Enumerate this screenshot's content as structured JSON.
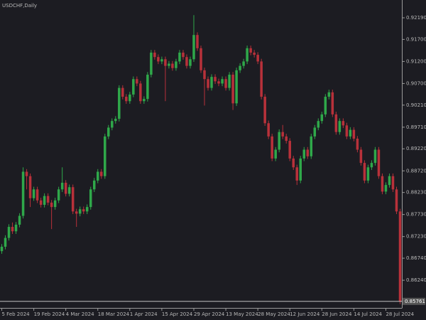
{
  "chart_data": {
    "type": "candlestick",
    "title": "USDCHF,Daily",
    "colors": {
      "up": "#2fa84a",
      "down": "#b8313a",
      "background": "#1c1c22",
      "axis": "#9a9a9a",
      "price_line": "#d8d8d8"
    },
    "ylim": [
      0.85613,
      0.92593
    ],
    "yticks": [
      {
        "value": 0.9219,
        "label": "0.92190"
      },
      {
        "value": 0.917,
        "label": "0.91700"
      },
      {
        "value": 0.912,
        "label": "0.91200"
      },
      {
        "value": 0.907,
        "label": "0.90700"
      },
      {
        "value": 0.9021,
        "label": "0.90210"
      },
      {
        "value": 0.8971,
        "label": "0.89710"
      },
      {
        "value": 0.8922,
        "label": "0.89220"
      },
      {
        "value": 0.8872,
        "label": "0.88720"
      },
      {
        "value": 0.8823,
        "label": "0.88230"
      },
      {
        "value": 0.8773,
        "label": "0.87730"
      },
      {
        "value": 0.8723,
        "label": "0.87230"
      },
      {
        "value": 0.8674,
        "label": "0.86740"
      },
      {
        "value": 0.8624,
        "label": "0.86240"
      }
    ],
    "price_line": {
      "value": 0.85761,
      "label": "0.85761"
    },
    "categories": [
      "5 Feb 2024",
      null,
      null,
      null,
      null,
      null,
      null,
      null,
      null,
      "19 Feb 2024",
      null,
      null,
      null,
      null,
      null,
      null,
      null,
      null,
      "4 Mar 2024",
      null,
      null,
      null,
      null,
      null,
      null,
      null,
      null,
      "18 Mar 2024",
      null,
      null,
      null,
      null,
      null,
      null,
      null,
      null,
      "1 Apr 2024",
      null,
      null,
      null,
      null,
      null,
      null,
      null,
      null,
      "15 Apr 2024",
      null,
      null,
      null,
      null,
      null,
      null,
      null,
      null,
      "29 Apr 2024",
      null,
      null,
      null,
      null,
      null,
      null,
      null,
      null,
      "13 May 2024",
      null,
      null,
      null,
      null,
      null,
      null,
      null,
      null,
      "28 May 2024",
      null,
      null,
      null,
      null,
      null,
      null,
      null,
      null,
      "12 Jun 2024",
      null,
      null,
      null,
      null,
      null,
      null,
      null,
      null,
      "28 Jun 2024",
      null,
      null,
      null,
      null,
      null,
      null,
      null,
      null,
      "14 Jul 2024",
      null,
      null,
      null,
      null,
      null,
      null,
      null,
      null,
      "28 Jul 2024",
      null,
      null,
      null,
      null
    ],
    "candles": [
      [
        0.869,
        0.8706,
        0.8684,
        0.87
      ],
      [
        0.87,
        0.8726,
        0.8694,
        0.872
      ],
      [
        0.872,
        0.8751,
        0.8714,
        0.8745
      ],
      [
        0.8745,
        0.8755,
        0.8729,
        0.8735
      ],
      [
        0.8735,
        0.8756,
        0.8729,
        0.875
      ],
      [
        0.875,
        0.8776,
        0.8744,
        0.877
      ],
      [
        0.877,
        0.888,
        0.8764,
        0.887
      ],
      [
        0.887,
        0.8876,
        0.883,
        0.886
      ],
      [
        0.886,
        0.8866,
        0.879,
        0.881
      ],
      [
        0.881,
        0.8836,
        0.8804,
        0.883
      ],
      [
        0.883,
        0.8836,
        0.8799,
        0.8805
      ],
      [
        0.8805,
        0.8811,
        0.8789,
        0.8795
      ],
      [
        0.8795,
        0.8821,
        0.8789,
        0.8815
      ],
      [
        0.8815,
        0.8821,
        0.8794,
        0.88
      ],
      [
        0.88,
        0.8806,
        0.874,
        0.879
      ],
      [
        0.879,
        0.8811,
        0.8784,
        0.8805
      ],
      [
        0.8805,
        0.8836,
        0.8799,
        0.883
      ],
      [
        0.883,
        0.888,
        0.8824,
        0.8845
      ],
      [
        0.8845,
        0.8851,
        0.8814,
        0.882
      ],
      [
        0.882,
        0.8841,
        0.8814,
        0.8835
      ],
      [
        0.8835,
        0.8841,
        0.8774,
        0.878
      ],
      [
        0.878,
        0.8786,
        0.8745,
        0.8775
      ],
      [
        0.8775,
        0.8791,
        0.8769,
        0.8785
      ],
      [
        0.8785,
        0.8791,
        0.8774,
        0.878
      ],
      [
        0.878,
        0.8796,
        0.8774,
        0.879
      ],
      [
        0.879,
        0.8836,
        0.8784,
        0.883
      ],
      [
        0.883,
        0.8856,
        0.8824,
        0.885
      ],
      [
        0.885,
        0.8876,
        0.8844,
        0.887
      ],
      [
        0.887,
        0.8876,
        0.8854,
        0.886
      ],
      [
        0.886,
        0.8956,
        0.8854,
        0.895
      ],
      [
        0.895,
        0.8976,
        0.8944,
        0.897
      ],
      [
        0.897,
        0.8991,
        0.8964,
        0.8985
      ],
      [
        0.8985,
        0.8996,
        0.8979,
        0.899
      ],
      [
        0.899,
        0.9066,
        0.8984,
        0.906
      ],
      [
        0.906,
        0.9066,
        0.9034,
        0.904
      ],
      [
        0.904,
        0.9046,
        0.9024,
        0.903
      ],
      [
        0.903,
        0.9051,
        0.9024,
        0.9045
      ],
      [
        0.9045,
        0.9086,
        0.9039,
        0.908
      ],
      [
        0.908,
        0.9086,
        0.9064,
        0.907
      ],
      [
        0.907,
        0.9076,
        0.9024,
        0.903
      ],
      [
        0.903,
        0.9041,
        0.9024,
        0.9035
      ],
      [
        0.9035,
        0.9096,
        0.9029,
        0.909
      ],
      [
        0.909,
        0.9146,
        0.9084,
        0.914
      ],
      [
        0.914,
        0.9146,
        0.9124,
        0.913
      ],
      [
        0.913,
        0.9136,
        0.9114,
        0.912
      ],
      [
        0.912,
        0.9131,
        0.9114,
        0.9125
      ],
      [
        0.9125,
        0.9131,
        0.903,
        0.911
      ],
      [
        0.911,
        0.9121,
        0.9104,
        0.9115
      ],
      [
        0.9115,
        0.9121,
        0.9099,
        0.9105
      ],
      [
        0.9105,
        0.9126,
        0.9099,
        0.912
      ],
      [
        0.912,
        0.9146,
        0.9114,
        0.914
      ],
      [
        0.914,
        0.9146,
        0.9124,
        0.913
      ],
      [
        0.913,
        0.9136,
        0.9104,
        0.911
      ],
      [
        0.911,
        0.9131,
        0.9104,
        0.9125
      ],
      [
        0.9125,
        0.9225,
        0.9119,
        0.918
      ],
      [
        0.918,
        0.9186,
        0.9144,
        0.915
      ],
      [
        0.915,
        0.9156,
        0.9094,
        0.91
      ],
      [
        0.91,
        0.9106,
        0.902,
        0.908
      ],
      [
        0.908,
        0.9086,
        0.9054,
        0.906
      ],
      [
        0.906,
        0.9091,
        0.9054,
        0.9085
      ],
      [
        0.9085,
        0.9091,
        0.9069,
        0.9075
      ],
      [
        0.9075,
        0.9081,
        0.9064,
        0.907
      ],
      [
        0.907,
        0.9086,
        0.9064,
        0.908
      ],
      [
        0.908,
        0.9086,
        0.9054,
        0.906
      ],
      [
        0.906,
        0.9096,
        0.9054,
        0.909
      ],
      [
        0.909,
        0.9096,
        0.901,
        0.9025
      ],
      [
        0.9025,
        0.9106,
        0.9019,
        0.91
      ],
      [
        0.91,
        0.9116,
        0.9094,
        0.911
      ],
      [
        0.911,
        0.9126,
        0.9104,
        0.912
      ],
      [
        0.912,
        0.9156,
        0.9114,
        0.915
      ],
      [
        0.915,
        0.9156,
        0.9134,
        0.914
      ],
      [
        0.914,
        0.9146,
        0.9129,
        0.9135
      ],
      [
        0.9135,
        0.9141,
        0.9114,
        0.912
      ],
      [
        0.912,
        0.9126,
        0.9034,
        0.904
      ],
      [
        0.904,
        0.9046,
        0.8974,
        0.898
      ],
      [
        0.898,
        0.8986,
        0.8944,
        0.895
      ],
      [
        0.895,
        0.8956,
        0.8894,
        0.89
      ],
      [
        0.89,
        0.8926,
        0.8894,
        0.892
      ],
      [
        0.892,
        0.8966,
        0.8914,
        0.896
      ],
      [
        0.896,
        0.8976,
        0.8944,
        0.895
      ],
      [
        0.895,
        0.8956,
        0.8934,
        0.894
      ],
      [
        0.894,
        0.8946,
        0.8894,
        0.89
      ],
      [
        0.89,
        0.8906,
        0.8874,
        0.888
      ],
      [
        0.888,
        0.8886,
        0.884,
        0.885
      ],
      [
        0.885,
        0.8906,
        0.8844,
        0.89
      ],
      [
        0.89,
        0.8926,
        0.8894,
        0.892
      ],
      [
        0.892,
        0.8926,
        0.8899,
        0.8905
      ],
      [
        0.8905,
        0.8956,
        0.8899,
        0.895
      ],
      [
        0.895,
        0.8976,
        0.8944,
        0.897
      ],
      [
        0.897,
        0.8991,
        0.8964,
        0.8985
      ],
      [
        0.8985,
        0.9006,
        0.8979,
        0.9
      ],
      [
        0.9,
        0.9046,
        0.8994,
        0.904
      ],
      [
        0.904,
        0.9056,
        0.9034,
        0.905
      ],
      [
        0.905,
        0.9056,
        0.8994,
        0.9
      ],
      [
        0.9,
        0.9006,
        0.8954,
        0.896
      ],
      [
        0.896,
        0.8991,
        0.8954,
        0.8985
      ],
      [
        0.8985,
        0.8991,
        0.8969,
        0.8975
      ],
      [
        0.8975,
        0.8981,
        0.8944,
        0.895
      ],
      [
        0.895,
        0.8971,
        0.8944,
        0.8965
      ],
      [
        0.8965,
        0.8971,
        0.8939,
        0.8945
      ],
      [
        0.8945,
        0.8951,
        0.8914,
        0.892
      ],
      [
        0.892,
        0.8926,
        0.8884,
        0.889
      ],
      [
        0.889,
        0.8896,
        0.8844,
        0.885
      ],
      [
        0.885,
        0.8886,
        0.8844,
        0.888
      ],
      [
        0.888,
        0.8896,
        0.8874,
        0.889
      ],
      [
        0.889,
        0.8926,
        0.8884,
        0.892
      ],
      [
        0.892,
        0.8926,
        0.8854,
        0.886
      ],
      [
        0.886,
        0.8866,
        0.8819,
        0.8825
      ],
      [
        0.8825,
        0.8846,
        0.8819,
        0.884
      ],
      [
        0.884,
        0.8866,
        0.8834,
        0.886
      ],
      [
        0.886,
        0.8866,
        0.8824,
        0.883
      ],
      [
        0.883,
        0.8836,
        0.8774,
        0.878
      ],
      [
        0.878,
        0.8786,
        0.857,
        0.8576
      ]
    ]
  }
}
